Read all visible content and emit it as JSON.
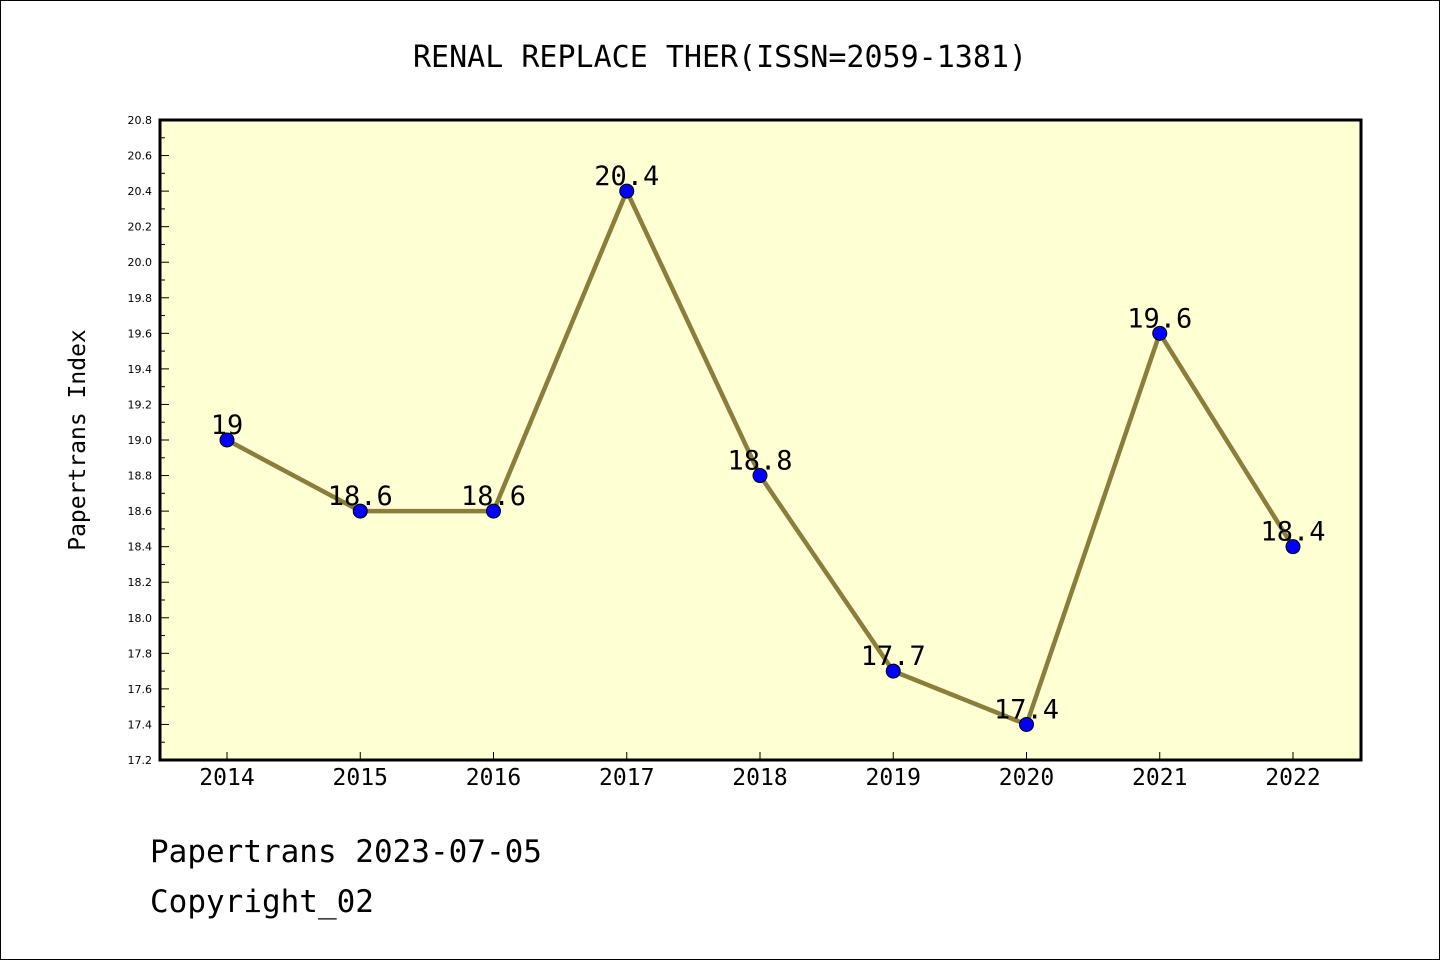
{
  "chart_data": {
    "type": "line",
    "title": "RENAL REPLACE THER(ISSN=2059-1381)",
    "xlabel": "",
    "ylabel": "Papertrans Index",
    "x": [
      2014,
      2015,
      2016,
      2017,
      2018,
      2019,
      2020,
      2021,
      2022
    ],
    "series": [
      {
        "values": [
          19,
          18.6,
          18.6,
          20.4,
          18.8,
          17.7,
          17.4,
          19.6,
          18.4
        ],
        "labels": [
          "19",
          "18.6",
          "18.6",
          "20.4",
          "18.8",
          "17.7",
          "17.4",
          "19.6",
          "18.4"
        ]
      }
    ],
    "ylim": [
      17.2,
      20.8
    ],
    "yticks": [
      "17.2",
      "17.4",
      "17.6",
      "17.8",
      "18.0",
      "18.2",
      "18.4",
      "18.6",
      "18.8",
      "19.0",
      "19.2",
      "19.4",
      "19.6",
      "19.8",
      "20.0",
      "20.2",
      "20.4",
      "20.6",
      "20.8"
    ],
    "grid": false,
    "legend": "none",
    "colors": {
      "plot_background": "#ffffd4",
      "line": "#8b7d3a",
      "marker": "#0000ff",
      "axis": "#000000"
    }
  },
  "footer": {
    "date_line": "Papertrans 2023-07-05",
    "copyright_line": "Copyright_02"
  }
}
